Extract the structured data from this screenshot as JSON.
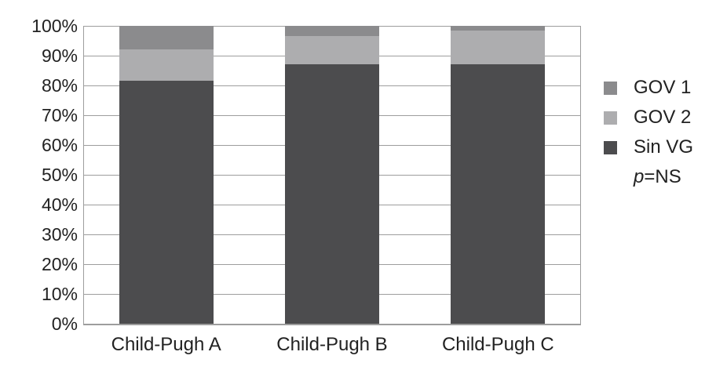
{
  "page": {
    "background": "#ffffff",
    "text_color": "#222222"
  },
  "chart_data": {
    "type": "bar",
    "stacked": true,
    "percent_stacked": true,
    "title": "",
    "xlabel": "",
    "ylabel": "",
    "categories": [
      "Child-Pugh A",
      "Child-Pugh B",
      "Child-Pugh C"
    ],
    "series": [
      {
        "name": "Sin VG",
        "color": "#4c4c4e",
        "values": [
          81.5,
          87.0,
          87.0
        ]
      },
      {
        "name": "GOV 2",
        "color": "#adadaf",
        "values": [
          10.5,
          9.5,
          11.5
        ]
      },
      {
        "name": "GOV 1",
        "color": "#8b8b8d",
        "values": [
          8.0,
          3.5,
          1.5
        ]
      }
    ],
    "ylim": [
      0,
      100
    ],
    "yticks": [
      "0%",
      "10%",
      "20%",
      "30%",
      "40%",
      "50%",
      "60%",
      "70%",
      "80%",
      "90%",
      "100%"
    ],
    "grid": true,
    "gridline_color": "#9d9d9d",
    "axis_color": "#9d9d9d",
    "legend": {
      "position": "right",
      "entries": [
        "GOV 1",
        "GOV 2",
        "Sin VG"
      ],
      "note_italic": "p",
      "note_rest": "=NS"
    }
  }
}
